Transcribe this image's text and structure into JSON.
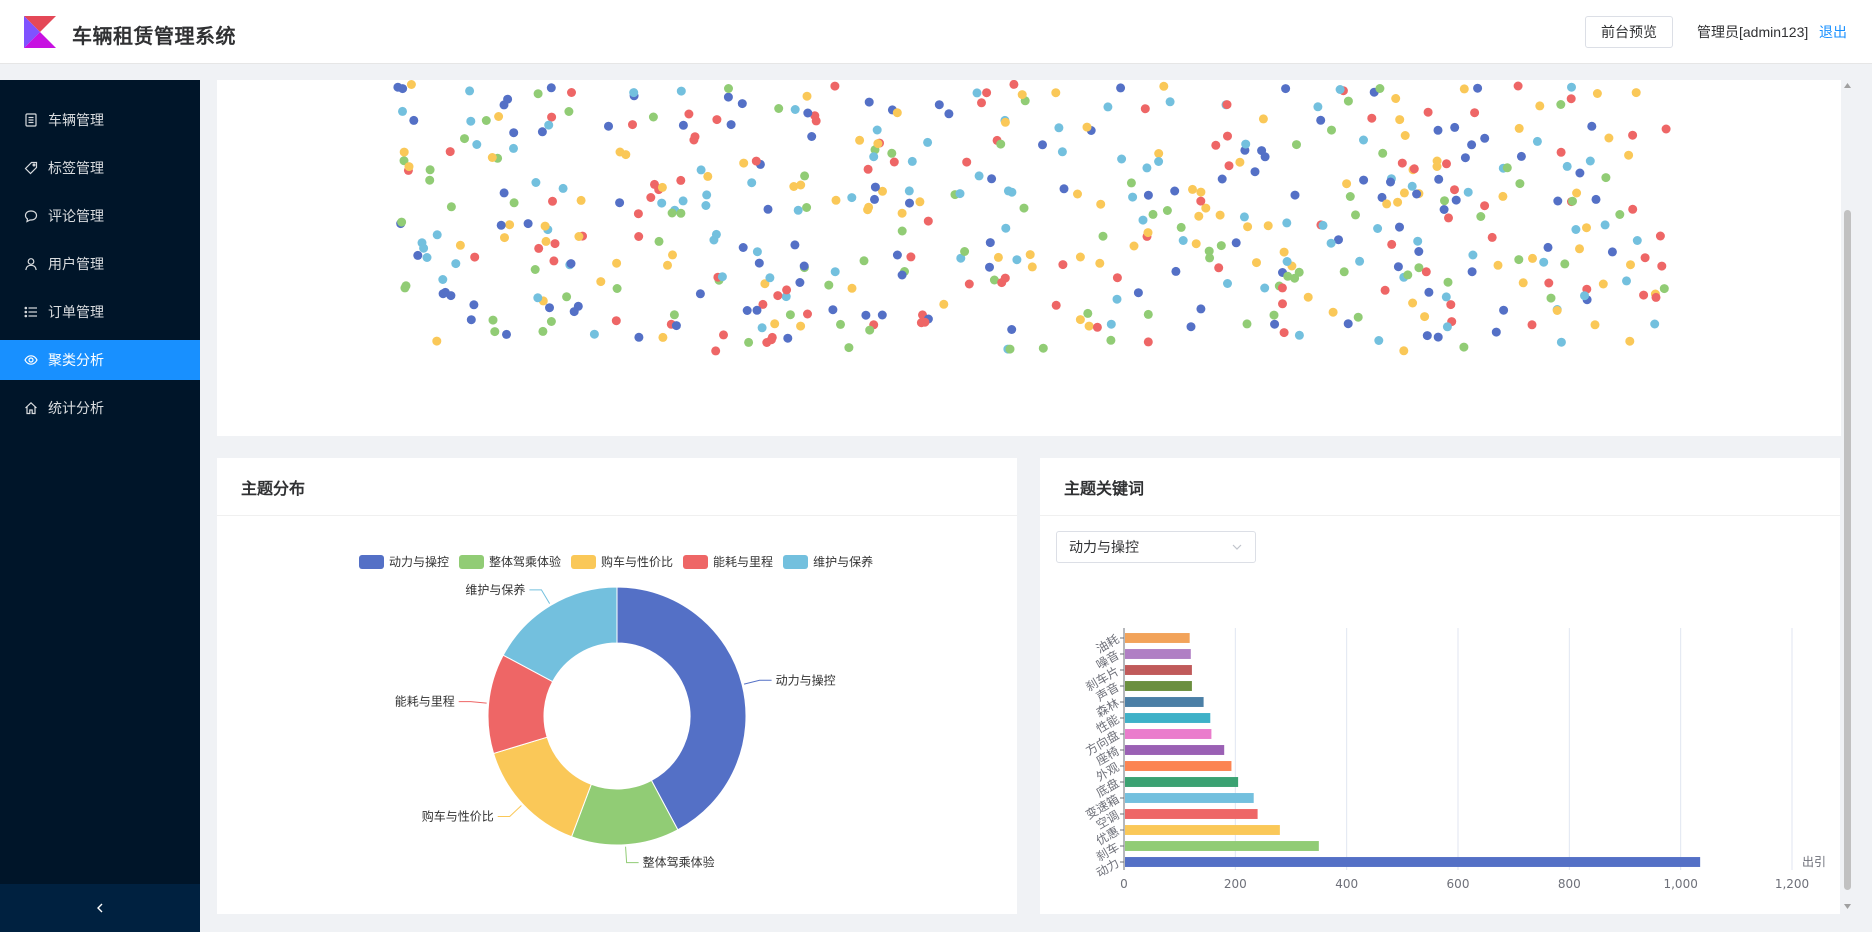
{
  "header": {
    "title": "车辆租赁管理系统",
    "preview_label": "前台预览",
    "admin_label": "管理员[admin123]",
    "logout_label": "退出"
  },
  "sidebar": {
    "items": [
      {
        "label": "车辆管理",
        "icon": "list-icon"
      },
      {
        "label": "标签管理",
        "icon": "tag-icon"
      },
      {
        "label": "评论管理",
        "icon": "comment-icon"
      },
      {
        "label": "用户管理",
        "icon": "user-icon"
      },
      {
        "label": "订单管理",
        "icon": "order-list-icon"
      },
      {
        "label": "聚类分析",
        "icon": "eye-icon",
        "active": true
      },
      {
        "label": "统计分析",
        "icon": "home-icon"
      }
    ],
    "collapse_icon": "chevron-left-icon"
  },
  "colors": {
    "blue": "#5470c6",
    "green": "#91cc75",
    "yellow": "#fac858",
    "red": "#ee6666",
    "cyan": "#73c0de",
    "accent": "#1890ff",
    "sidebar_bg": "#001529"
  },
  "topic_card": {
    "title": "主题分布"
  },
  "keyword_card": {
    "title": "主题关键词",
    "selected_topic": "动力与操控",
    "overflow_label": "出引"
  },
  "chart_data": [
    {
      "type": "scatter",
      "title": "",
      "series_count": 5,
      "series_colors": [
        "#5470c6",
        "#91cc75",
        "#fac858",
        "#ee6666",
        "#73c0de"
      ],
      "grid": false
    },
    {
      "type": "pie",
      "variant": "donut",
      "legend_position": "top",
      "slices": [
        {
          "name": "动力与操控",
          "value": 40.5,
          "color": "#5470c6"
        },
        {
          "name": "整体驾乘体验",
          "value": 13.0,
          "color": "#91cc75"
        },
        {
          "name": "购车与性价比",
          "value": 14.0,
          "color": "#fac858"
        },
        {
          "name": "能耗与里程",
          "value": 12.0,
          "color": "#ee6666"
        },
        {
          "name": "维护与保养",
          "value": 16.5,
          "color": "#73c0de"
        }
      ]
    },
    {
      "type": "bar",
      "orientation": "horizontal",
      "categories": [
        "动力",
        "刹车",
        "优惠",
        "空调",
        "变速箱",
        "底盘",
        "外观",
        "座椅",
        "方向盘",
        "性能",
        "森林",
        "声音",
        "刹车片",
        "噪音",
        "油耗"
      ],
      "values": [
        1035,
        350,
        280,
        240,
        233,
        205,
        193,
        180,
        157,
        155,
        143,
        122,
        122,
        120,
        118
      ],
      "colors": [
        "#5470c6",
        "#91cc75",
        "#fac858",
        "#ee6666",
        "#73c0de",
        "#3ba272",
        "#fc8452",
        "#9a60b4",
        "#ea7ccc",
        "#3fb1c8",
        "#4b7fa6",
        "#6b8f3f",
        "#c05a5a",
        "#b07fc4",
        "#f2a35a"
      ],
      "xlim": [
        0,
        1200
      ],
      "xticks": [
        0,
        200,
        400,
        600,
        800,
        1000,
        1200
      ],
      "xtick_labels": [
        "0",
        "200",
        "400",
        "600",
        "800",
        "1,000",
        "1,200"
      ],
      "grid": true
    }
  ]
}
